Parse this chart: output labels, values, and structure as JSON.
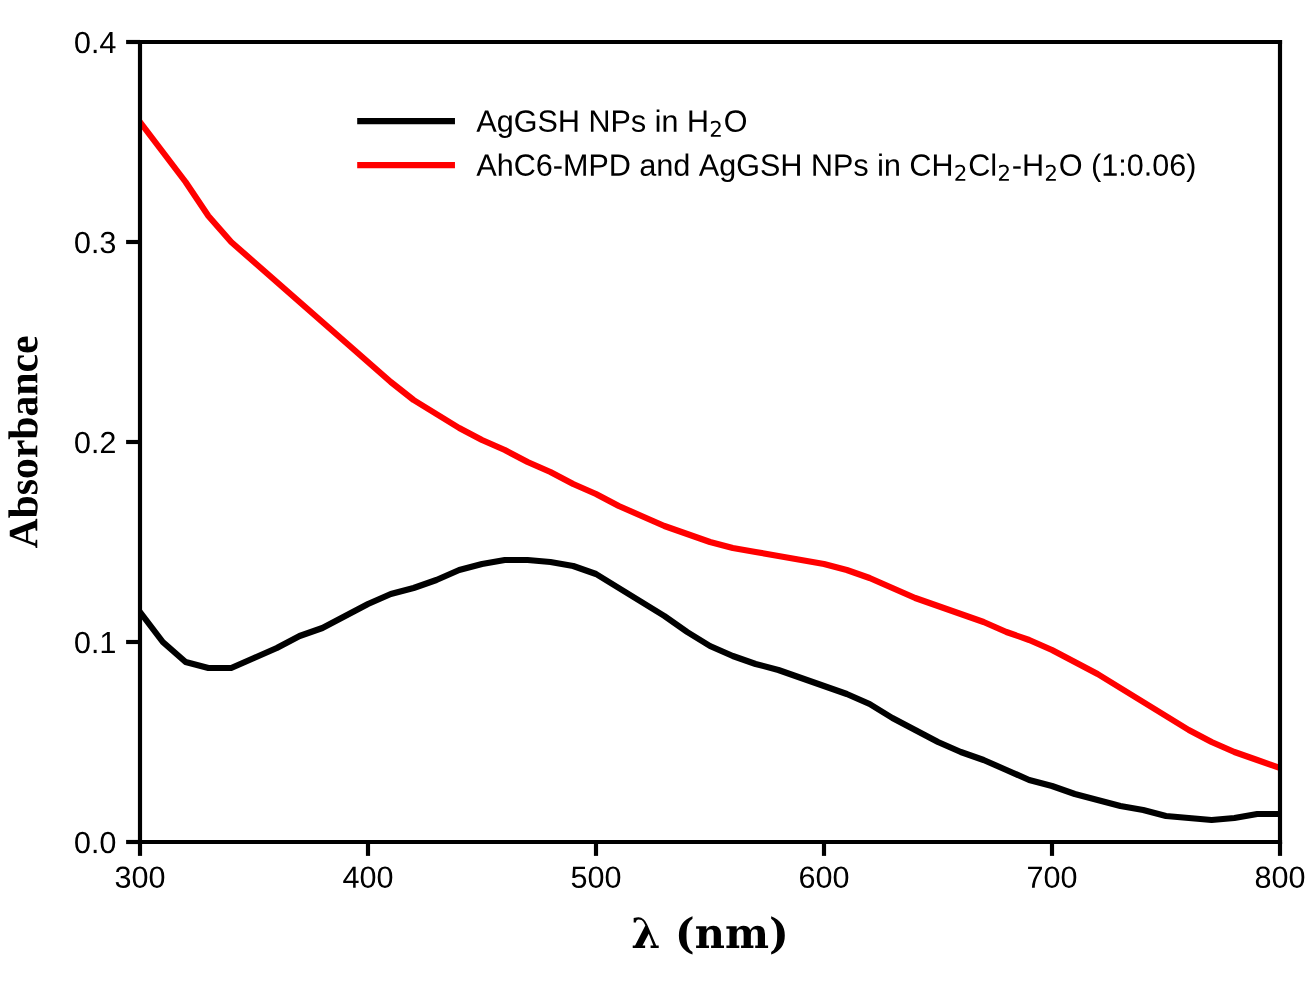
{
  "chart_data": {
    "type": "line",
    "xlabel": "λ (nm)",
    "ylabel": "Absorbance",
    "x": [
      300,
      310,
      320,
      330,
      340,
      350,
      360,
      370,
      380,
      390,
      400,
      410,
      420,
      430,
      440,
      450,
      460,
      470,
      480,
      490,
      500,
      510,
      520,
      530,
      540,
      550,
      560,
      570,
      580,
      590,
      600,
      610,
      620,
      630,
      640,
      650,
      660,
      670,
      680,
      690,
      700,
      710,
      720,
      730,
      740,
      750,
      760,
      770,
      780,
      790,
      800
    ],
    "series": [
      {
        "name": "AgGSH NPs in H$_{2}$O",
        "color": "#000000",
        "values": [
          0.115,
          0.1,
          0.09,
          0.087,
          0.087,
          0.092,
          0.097,
          0.103,
          0.107,
          0.113,
          0.119,
          0.124,
          0.127,
          0.131,
          0.136,
          0.139,
          0.141,
          0.141,
          0.14,
          0.138,
          0.134,
          0.127,
          0.12,
          0.113,
          0.105,
          0.098,
          0.093,
          0.089,
          0.086,
          0.082,
          0.078,
          0.074,
          0.069,
          0.062,
          0.056,
          0.05,
          0.045,
          0.041,
          0.036,
          0.031,
          0.028,
          0.024,
          0.021,
          0.018,
          0.016,
          0.013,
          0.012,
          0.011,
          0.012,
          0.014,
          0.014
        ]
      },
      {
        "name": "AhC6-MPD and AgGSH NPs in CH$_{2}$Cl$_{2}$-H$_{2}$O (1:0.06)",
        "color": "#ff0000",
        "values": [
          0.36,
          0.345,
          0.33,
          0.313,
          0.3,
          0.29,
          0.28,
          0.27,
          0.26,
          0.25,
          0.24,
          0.23,
          0.221,
          0.214,
          0.207,
          0.201,
          0.196,
          0.19,
          0.185,
          0.179,
          0.174,
          0.168,
          0.163,
          0.158,
          0.154,
          0.15,
          0.147,
          0.145,
          0.143,
          0.141,
          0.139,
          0.136,
          0.132,
          0.127,
          0.122,
          0.118,
          0.114,
          0.11,
          0.105,
          0.101,
          0.096,
          0.09,
          0.084,
          0.077,
          0.07,
          0.063,
          0.056,
          0.05,
          0.045,
          0.041,
          0.037
        ]
      }
    ],
    "xlim": [
      300,
      800
    ],
    "xticks": [
      300,
      400,
      500,
      600,
      700,
      800
    ],
    "ylim": [
      0,
      0.4
    ],
    "yticks": [
      {
        "value": 0,
        "label": "0.0"
      },
      {
        "value": 0.1,
        "label": "0.1"
      },
      {
        "value": 0.2,
        "label": "0.2"
      },
      {
        "value": 0.3,
        "label": "0.3"
      },
      {
        "value": 0.4,
        "label": "0.4"
      }
    ],
    "grid": false,
    "legend": "top",
    "marker": "none",
    "line_style": "solid"
  }
}
